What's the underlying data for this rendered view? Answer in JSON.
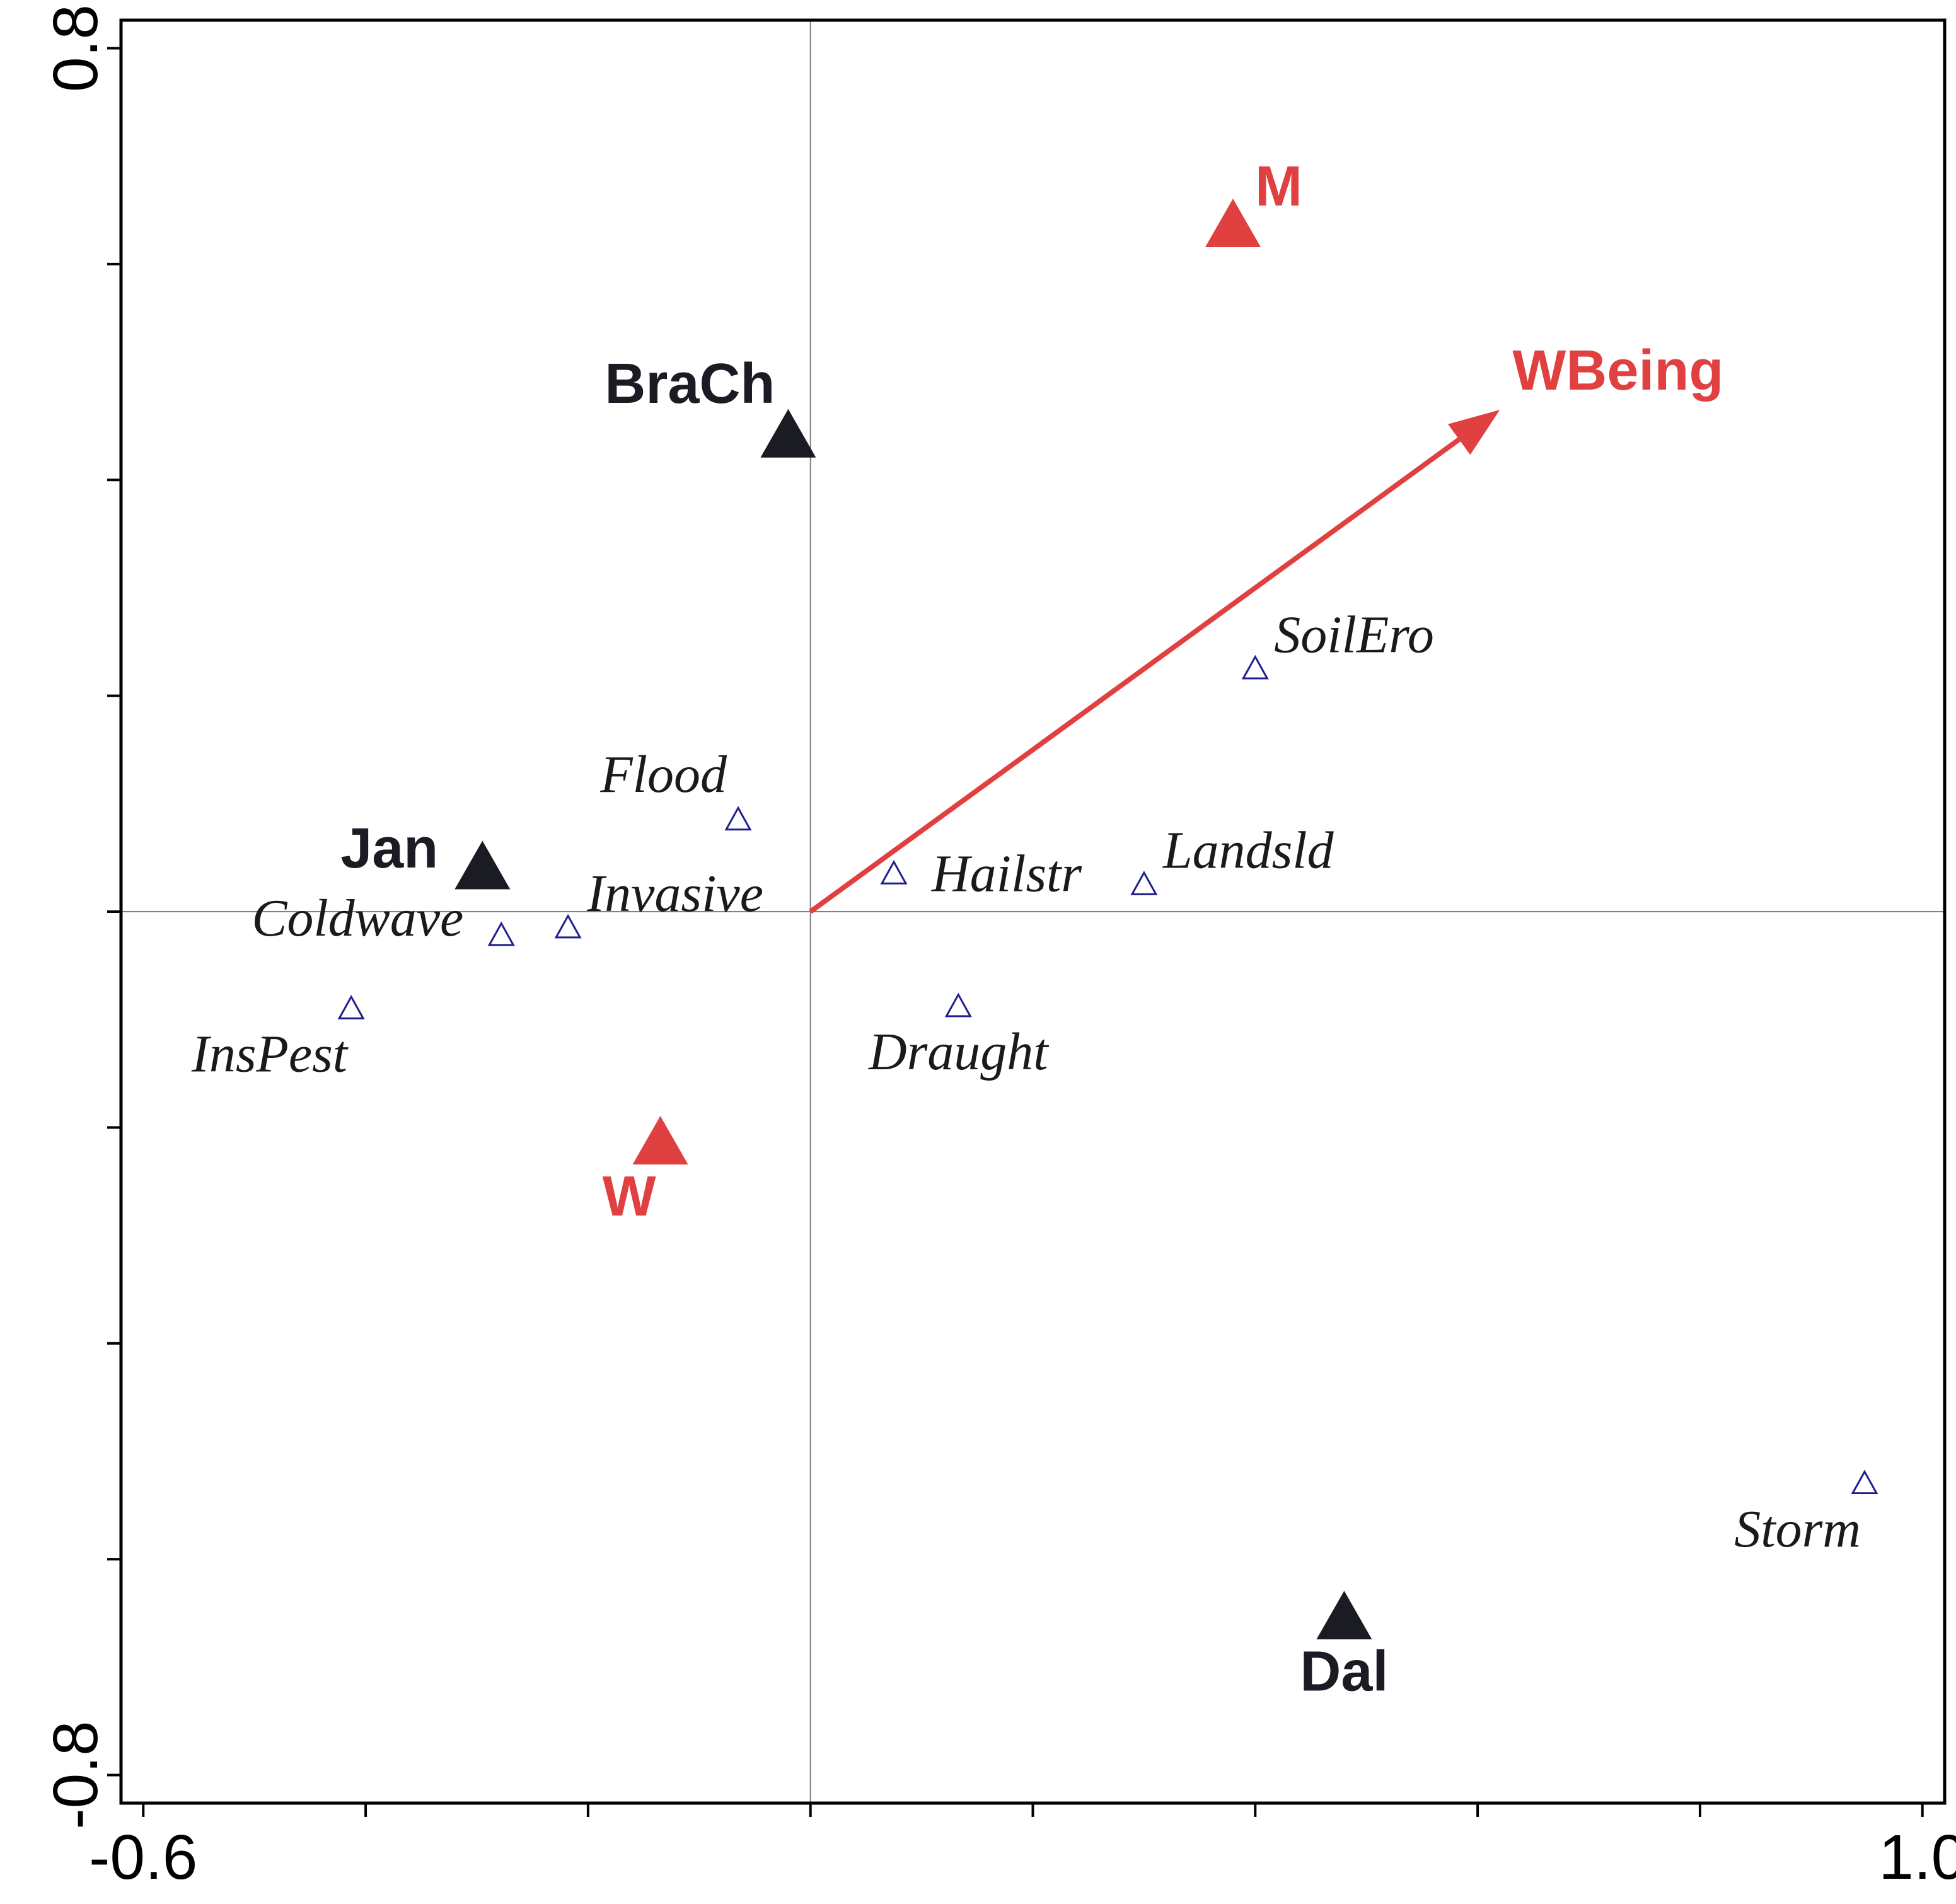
{
  "chart_data": {
    "type": "scatter",
    "title": "",
    "xlabel": "",
    "ylabel": "",
    "xlim": [
      -0.62,
      1.02
    ],
    "ylim": [
      -0.826,
      0.826
    ],
    "x_tick_labels": [
      {
        "value": -0.6,
        "label": "-0.6"
      },
      {
        "value": 1.0,
        "label": "1.0"
      }
    ],
    "y_tick_labels": [
      {
        "value": 0.8,
        "label": "0.8"
      },
      {
        "value": -0.8,
        "label": "-0.8"
      }
    ],
    "x_minor_ticks": [
      -0.6,
      -0.4,
      -0.2,
      0.0,
      0.2,
      0.4,
      0.6,
      0.8,
      1.0
    ],
    "y_minor_ticks": [
      -0.8,
      -0.6,
      -0.4,
      -0.2,
      0.0,
      0.2,
      0.4,
      0.6,
      0.8
    ],
    "reference_lines": {
      "x": 0.0,
      "y": 0.0
    },
    "colors": {
      "sample": "#1b1b24",
      "supplementary": "#e04040",
      "species": "#1f1f8f",
      "species_label": "#1a1a1a",
      "axis": "#000000",
      "reference": "#808080"
    },
    "samples": [
      {
        "name": "BraCh",
        "x": -0.02,
        "y": 0.44,
        "label_pos": "top-left"
      },
      {
        "name": "Jan",
        "x": -0.295,
        "y": 0.04,
        "label_pos": "left"
      },
      {
        "name": "Dal",
        "x": 0.48,
        "y": -0.655,
        "label_pos": "bottom"
      }
    ],
    "supplementary_samples": [
      {
        "name": "M",
        "x": 0.38,
        "y": 0.635,
        "label_pos": "top-right"
      },
      {
        "name": "W",
        "x": -0.135,
        "y": -0.215,
        "label_pos": "bottom-left"
      }
    ],
    "species": [
      {
        "name": "SoilEro",
        "x": 0.4,
        "y": 0.225,
        "label_pos": "top-right"
      },
      {
        "name": "Flood",
        "x": -0.065,
        "y": 0.085,
        "label_pos": "top-left"
      },
      {
        "name": "Hailstr",
        "x": 0.075,
        "y": 0.035,
        "label_pos": "right"
      },
      {
        "name": "Landsld",
        "x": 0.3,
        "y": 0.025,
        "label_pos": "top-right"
      },
      {
        "name": "Invasive",
        "x": -0.218,
        "y": -0.015,
        "label_pos": "top-right"
      },
      {
        "name": "Coldwave",
        "x": -0.278,
        "y": -0.022,
        "label_pos": "left"
      },
      {
        "name": "InsPest",
        "x": -0.413,
        "y": -0.09,
        "label_pos": "bottom-left"
      },
      {
        "name": "Draught",
        "x": 0.133,
        "y": -0.088,
        "label_pos": "bottom"
      },
      {
        "name": "Storm",
        "x": 0.948,
        "y": -0.53,
        "label_pos": "bottom-left"
      }
    ],
    "vectors": [
      {
        "name": "WBeing",
        "x": 0.62,
        "y": 0.465
      }
    ]
  }
}
